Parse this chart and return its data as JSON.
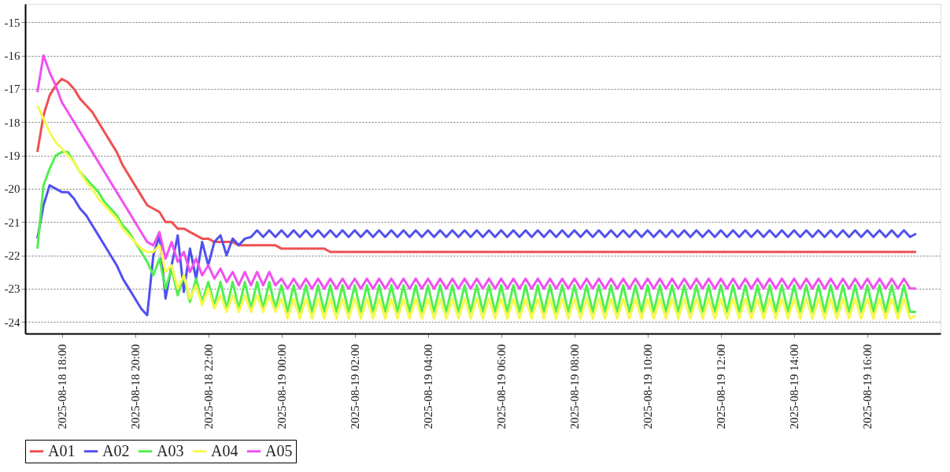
{
  "chart_data": {
    "type": "line",
    "legend": "bottom",
    "grid": "y",
    "marker": "none",
    "line_style": "solid",
    "xlim": [
      "2025-08-18T17:00",
      "2025-08-19T18:00"
    ],
    "ylim": [
      -24.35,
      -14.45
    ],
    "yticks": [
      -24,
      -23,
      -22,
      -21,
      -20,
      -19,
      -18,
      -17,
      -16,
      -15
    ],
    "xticks": [
      {
        "value": "2025-08-18T18:00",
        "label": "2025-08-18 18:00"
      },
      {
        "value": "2025-08-18T20:00",
        "label": "2025-08-18 20:00"
      },
      {
        "value": "2025-08-18T22:00",
        "label": "2025-08-18 22:00"
      },
      {
        "value": "2025-08-19T00:00",
        "label": "2025-08-19 00:00"
      },
      {
        "value": "2025-08-19T02:00",
        "label": "2025-08-19 02:00"
      },
      {
        "value": "2025-08-19T04:00",
        "label": "2025-08-19 04:00"
      },
      {
        "value": "2025-08-19T06:00",
        "label": "2025-08-19 06:00"
      },
      {
        "value": "2025-08-19T08:00",
        "label": "2025-08-19 08:00"
      },
      {
        "value": "2025-08-19T10:00",
        "label": "2025-08-19 10:00"
      },
      {
        "value": "2025-08-19T12:00",
        "label": "2025-08-19 12:00"
      },
      {
        "value": "2025-08-19T14:00",
        "label": "2025-08-19 14:00"
      },
      {
        "value": "2025-08-19T16:00",
        "label": "2025-08-19 16:00"
      }
    ],
    "x": [
      "2025-08-18T17:20",
      "2025-08-18T17:30",
      "2025-08-18T17:40",
      "2025-08-18T17:50",
      "2025-08-18T18:00",
      "2025-08-18T18:10",
      "2025-08-18T18:20",
      "2025-08-18T18:30",
      "2025-08-18T18:40",
      "2025-08-18T18:50",
      "2025-08-18T19:00",
      "2025-08-18T19:10",
      "2025-08-18T19:20",
      "2025-08-18T19:30",
      "2025-08-18T19:40",
      "2025-08-18T19:50",
      "2025-08-18T20:00",
      "2025-08-18T20:10",
      "2025-08-18T20:20",
      "2025-08-18T20:30",
      "2025-08-18T20:40",
      "2025-08-18T20:50",
      "2025-08-18T21:00",
      "2025-08-18T21:10",
      "2025-08-18T21:20",
      "2025-08-18T21:30",
      "2025-08-18T21:40",
      "2025-08-18T21:50",
      "2025-08-18T22:00",
      "2025-08-18T22:10",
      "2025-08-18T22:20",
      "2025-08-18T22:30",
      "2025-08-18T22:40",
      "2025-08-18T22:50",
      "2025-08-18T23:00",
      "2025-08-18T23:10",
      "2025-08-18T23:20",
      "2025-08-18T23:30",
      "2025-08-18T23:40",
      "2025-08-18T23:50",
      "2025-08-19T00:00",
      "2025-08-19T00:10",
      "2025-08-19T00:20",
      "2025-08-19T00:30",
      "2025-08-19T00:40",
      "2025-08-19T00:50",
      "2025-08-19T01:00",
      "2025-08-19T01:10",
      "2025-08-19T01:20",
      "2025-08-19T01:30",
      "2025-08-19T01:40",
      "2025-08-19T01:50",
      "2025-08-19T02:00",
      "2025-08-19T02:10",
      "2025-08-19T02:20",
      "2025-08-19T02:30",
      "2025-08-19T02:40",
      "2025-08-19T02:50",
      "2025-08-19T03:00",
      "2025-08-19T03:10",
      "2025-08-19T03:20",
      "2025-08-19T03:30",
      "2025-08-19T03:40",
      "2025-08-19T03:50",
      "2025-08-19T04:00",
      "2025-08-19T04:10",
      "2025-08-19T04:20",
      "2025-08-19T04:30",
      "2025-08-19T04:40",
      "2025-08-19T04:50",
      "2025-08-19T05:00",
      "2025-08-19T05:10",
      "2025-08-19T05:20",
      "2025-08-19T05:30",
      "2025-08-19T05:40",
      "2025-08-19T05:50",
      "2025-08-19T06:00",
      "2025-08-19T06:10",
      "2025-08-19T06:20",
      "2025-08-19T06:30",
      "2025-08-19T06:40",
      "2025-08-19T06:50",
      "2025-08-19T07:00",
      "2025-08-19T07:10",
      "2025-08-19T07:20",
      "2025-08-19T07:30",
      "2025-08-19T07:40",
      "2025-08-19T07:50",
      "2025-08-19T08:00",
      "2025-08-19T08:10",
      "2025-08-19T08:20",
      "2025-08-19T08:30",
      "2025-08-19T08:40",
      "2025-08-19T08:50",
      "2025-08-19T09:00",
      "2025-08-19T09:10",
      "2025-08-19T09:20",
      "2025-08-19T09:30",
      "2025-08-19T09:40",
      "2025-08-19T09:50",
      "2025-08-19T10:00",
      "2025-08-19T10:10",
      "2025-08-19T10:20",
      "2025-08-19T10:30",
      "2025-08-19T10:40",
      "2025-08-19T10:50",
      "2025-08-19T11:00",
      "2025-08-19T11:10",
      "2025-08-19T11:20",
      "2025-08-19T11:30",
      "2025-08-19T11:40",
      "2025-08-19T11:50",
      "2025-08-19T12:00",
      "2025-08-19T12:10",
      "2025-08-19T12:20",
      "2025-08-19T12:30",
      "2025-08-19T12:40",
      "2025-08-19T12:50",
      "2025-08-19T13:00",
      "2025-08-19T13:10",
      "2025-08-19T13:20",
      "2025-08-19T13:30",
      "2025-08-19T13:40",
      "2025-08-19T13:50",
      "2025-08-19T14:00",
      "2025-08-19T14:10",
      "2025-08-19T14:20",
      "2025-08-19T14:30",
      "2025-08-19T14:40",
      "2025-08-19T14:50",
      "2025-08-19T15:00",
      "2025-08-19T15:10",
      "2025-08-19T15:20",
      "2025-08-19T15:30",
      "2025-08-19T15:40",
      "2025-08-19T15:50",
      "2025-08-19T16:00",
      "2025-08-19T16:10",
      "2025-08-19T16:20",
      "2025-08-19T16:30",
      "2025-08-19T16:40",
      "2025-08-19T16:50",
      "2025-08-19T17:00",
      "2025-08-19T17:10",
      "2025-08-19T17:20"
    ],
    "series": [
      {
        "name": "A01",
        "color": "#f05050",
        "values": [
          -18.9,
          -17.8,
          -17.2,
          -16.9,
          -16.7,
          -16.8,
          -17.0,
          -17.3,
          -17.5,
          -17.7,
          -18.0,
          -18.3,
          -18.6,
          -18.9,
          -19.3,
          -19.6,
          -19.9,
          -20.2,
          -20.5,
          -20.6,
          -20.7,
          -21.0,
          -21.0,
          -21.2,
          -21.2,
          -21.3,
          -21.4,
          -21.5,
          -21.5,
          -21.6,
          -21.6,
          -21.6,
          -21.6,
          -21.7,
          -21.7,
          -21.7,
          -21.7,
          -21.7,
          -21.7,
          -21.7,
          -21.8,
          -21.8,
          -21.8,
          -21.8,
          -21.8,
          -21.8,
          -21.8,
          -21.8,
          -21.9,
          -21.9,
          -21.9,
          -21.9,
          -21.9,
          -21.9,
          -21.9,
          -21.9,
          -21.9,
          -21.9,
          -21.9,
          -21.9,
          -21.9,
          -21.9,
          -21.9,
          -21.9,
          -21.9,
          -21.9,
          -21.9,
          -21.9,
          -21.9,
          -21.9,
          -21.9,
          -21.9,
          -21.9,
          -21.9,
          -21.9,
          -21.9,
          -21.9,
          -21.9,
          -21.9,
          -21.9,
          -21.9,
          -21.9,
          -21.9,
          -21.9,
          -21.9,
          -21.9,
          -21.9,
          -21.9,
          -21.9,
          -21.9,
          -21.9,
          -21.9,
          -21.9,
          -21.9,
          -21.9,
          -21.9,
          -21.9,
          -21.9,
          -21.9,
          -21.9,
          -21.9,
          -21.9,
          -21.9,
          -21.9,
          -21.9,
          -21.9,
          -21.9,
          -21.9,
          -21.9,
          -21.9,
          -21.9,
          -21.9,
          -21.9,
          -21.9,
          -21.9,
          -21.9,
          -21.9,
          -21.9,
          -21.9,
          -21.9,
          -21.9,
          -21.9,
          -21.9,
          -21.9,
          -21.9,
          -21.9,
          -21.9,
          -21.9,
          -21.9,
          -21.9,
          -21.9,
          -21.9,
          -21.9,
          -21.9,
          -21.9,
          -21.9,
          -21.9,
          -21.9,
          -21.9,
          -21.9,
          -21.9,
          -21.9,
          -21.9,
          -21.9,
          -21.9
        ]
      },
      {
        "name": "A02",
        "color": "#5050f0",
        "values": [
          -21.5,
          -20.5,
          -19.9,
          -20.0,
          -20.1,
          -20.1,
          -20.3,
          -20.6,
          -20.8,
          -21.1,
          -21.4,
          -21.7,
          -22.0,
          -22.3,
          -22.7,
          -23.0,
          -23.3,
          -23.6,
          -23.8,
          -22.0,
          -21.4,
          -23.3,
          -22.3,
          -21.4,
          -23.1,
          -21.8,
          -22.7,
          -21.6,
          -22.3,
          -21.6,
          -21.4,
          -22.0,
          -21.5,
          -21.7,
          -21.5,
          -21.45,
          -21.25,
          -21.45,
          -21.25,
          -21.45,
          -21.25,
          -21.45,
          -21.25,
          -21.45,
          -21.25,
          -21.45,
          -21.25,
          -21.45,
          -21.25,
          -21.45,
          -21.25,
          -21.45,
          -21.25,
          -21.45,
          -21.25,
          -21.45,
          -21.25,
          -21.45,
          -21.25,
          -21.45,
          -21.25,
          -21.45,
          -21.25,
          -21.45,
          -21.25,
          -21.45,
          -21.25,
          -21.45,
          -21.25,
          -21.45,
          -21.25,
          -21.45,
          -21.25,
          -21.45,
          -21.25,
          -21.45,
          -21.25,
          -21.45,
          -21.25,
          -21.45,
          -21.25,
          -21.45,
          -21.25,
          -21.45,
          -21.25,
          -21.45,
          -21.25,
          -21.45,
          -21.25,
          -21.45,
          -21.25,
          -21.45,
          -21.25,
          -21.45,
          -21.25,
          -21.45,
          -21.25,
          -21.45,
          -21.25,
          -21.45,
          -21.25,
          -21.45,
          -21.25,
          -21.45,
          -21.25,
          -21.45,
          -21.25,
          -21.45,
          -21.25,
          -21.45,
          -21.25,
          -21.45,
          -21.25,
          -21.45,
          -21.25,
          -21.45,
          -21.25,
          -21.45,
          -21.25,
          -21.45,
          -21.25,
          -21.45,
          -21.25,
          -21.45,
          -21.25,
          -21.45,
          -21.25,
          -21.45,
          -21.25,
          -21.45,
          -21.25,
          -21.45,
          -21.25,
          -21.45,
          -21.25,
          -21.45,
          -21.25,
          -21.45,
          -21.25,
          -21.45,
          -21.25,
          -21.45,
          -21.25,
          -21.45,
          -21.35
        ]
      },
      {
        "name": "A03",
        "color": "#50f050",
        "values": [
          -21.8,
          -19.9,
          -19.4,
          -19.0,
          -18.9,
          -18.9,
          -19.2,
          -19.5,
          -19.7,
          -19.9,
          -20.1,
          -20.4,
          -20.6,
          -20.8,
          -21.1,
          -21.3,
          -21.6,
          -21.9,
          -22.2,
          -22.6,
          -22.1,
          -23.0,
          -22.4,
          -23.2,
          -22.6,
          -23.4,
          -22.7,
          -23.4,
          -22.8,
          -23.5,
          -22.8,
          -23.6,
          -22.8,
          -23.6,
          -22.8,
          -23.6,
          -22.8,
          -23.6,
          -22.8,
          -23.6,
          -22.9,
          -23.7,
          -22.9,
          -23.7,
          -22.9,
          -23.7,
          -22.9,
          -23.7,
          -22.9,
          -23.7,
          -22.9,
          -23.7,
          -22.9,
          -23.7,
          -22.9,
          -23.7,
          -22.9,
          -23.7,
          -22.9,
          -23.7,
          -22.9,
          -23.7,
          -22.9,
          -23.7,
          -22.9,
          -23.7,
          -22.9,
          -23.7,
          -22.9,
          -23.7,
          -22.9,
          -23.7,
          -22.9,
          -23.7,
          -22.9,
          -23.7,
          -22.9,
          -23.7,
          -22.9,
          -23.7,
          -22.9,
          -23.7,
          -22.9,
          -23.7,
          -22.9,
          -23.7,
          -22.9,
          -23.7,
          -22.9,
          -23.7,
          -22.9,
          -23.7,
          -22.9,
          -23.7,
          -22.9,
          -23.7,
          -22.9,
          -23.7,
          -22.9,
          -23.7,
          -22.9,
          -23.7,
          -22.9,
          -23.7,
          -22.9,
          -23.7,
          -22.9,
          -23.7,
          -22.9,
          -23.7,
          -22.9,
          -23.7,
          -22.9,
          -23.7,
          -22.9,
          -23.7,
          -22.9,
          -23.7,
          -22.9,
          -23.7,
          -22.9,
          -23.7,
          -22.9,
          -23.7,
          -22.9,
          -23.7,
          -22.9,
          -23.7,
          -22.9,
          -23.7,
          -22.9,
          -23.7,
          -22.9,
          -23.7,
          -22.9,
          -23.7,
          -22.9,
          -23.7,
          -22.9,
          -23.7,
          -22.9,
          -23.7,
          -22.9,
          -23.7,
          -23.7
        ]
      },
      {
        "name": "A04",
        "color": "#f8f850",
        "values": [
          -17.5,
          -17.9,
          -18.3,
          -18.6,
          -18.8,
          -19.0,
          -19.2,
          -19.5,
          -19.8,
          -20.0,
          -20.3,
          -20.5,
          -20.7,
          -20.9,
          -21.2,
          -21.4,
          -21.6,
          -21.8,
          -21.9,
          -21.9,
          -21.7,
          -22.5,
          -22.3,
          -23.0,
          -22.6,
          -23.3,
          -22.9,
          -23.5,
          -23.0,
          -23.6,
          -23.2,
          -23.7,
          -23.2,
          -23.7,
          -23.2,
          -23.7,
          -23.2,
          -23.7,
          -23.2,
          -23.7,
          -23.3,
          -23.9,
          -23.3,
          -23.9,
          -23.3,
          -23.9,
          -23.3,
          -23.9,
          -23.3,
          -23.9,
          -23.3,
          -23.9,
          -23.3,
          -23.9,
          -23.3,
          -23.9,
          -23.3,
          -23.9,
          -23.3,
          -23.9,
          -23.3,
          -23.9,
          -23.3,
          -23.9,
          -23.3,
          -23.9,
          -23.3,
          -23.9,
          -23.3,
          -23.9,
          -23.3,
          -23.9,
          -23.3,
          -23.9,
          -23.3,
          -23.9,
          -23.3,
          -23.9,
          -23.3,
          -23.9,
          -23.3,
          -23.9,
          -23.3,
          -23.9,
          -23.3,
          -23.9,
          -23.3,
          -23.9,
          -23.3,
          -23.9,
          -23.3,
          -23.9,
          -23.3,
          -23.9,
          -23.3,
          -23.9,
          -23.3,
          -23.9,
          -23.3,
          -23.9,
          -23.3,
          -23.9,
          -23.3,
          -23.9,
          -23.3,
          -23.9,
          -23.3,
          -23.9,
          -23.3,
          -23.9,
          -23.3,
          -23.9,
          -23.3,
          -23.9,
          -23.3,
          -23.9,
          -23.3,
          -23.9,
          -23.3,
          -23.9,
          -23.3,
          -23.9,
          -23.3,
          -23.9,
          -23.3,
          -23.9,
          -23.3,
          -23.9,
          -23.3,
          -23.9,
          -23.3,
          -23.9,
          -23.3,
          -23.9,
          -23.3,
          -23.9,
          -23.3,
          -23.9,
          -23.3,
          -23.9,
          -23.3,
          -23.9,
          -23.3,
          -23.9,
          -23.8
        ]
      },
      {
        "name": "A05",
        "color": "#f050f0",
        "values": [
          -17.1,
          -16.0,
          -16.5,
          -16.9,
          -17.4,
          -17.7,
          -18.0,
          -18.3,
          -18.6,
          -18.9,
          -19.2,
          -19.5,
          -19.8,
          -20.1,
          -20.4,
          -20.7,
          -21.0,
          -21.3,
          -21.6,
          -21.7,
          -21.3,
          -22.1,
          -21.6,
          -22.2,
          -21.9,
          -22.5,
          -22.1,
          -22.6,
          -22.3,
          -22.7,
          -22.4,
          -22.8,
          -22.5,
          -22.9,
          -22.5,
          -22.9,
          -22.5,
          -22.9,
          -22.5,
          -22.9,
          -22.7,
          -23.0,
          -22.7,
          -23.0,
          -22.7,
          -23.0,
          -22.7,
          -23.0,
          -22.7,
          -23.0,
          -22.7,
          -23.0,
          -22.7,
          -23.0,
          -22.7,
          -23.0,
          -22.7,
          -23.0,
          -22.7,
          -23.0,
          -22.7,
          -23.0,
          -22.7,
          -23.0,
          -22.7,
          -23.0,
          -22.7,
          -23.0,
          -22.7,
          -23.0,
          -22.7,
          -23.0,
          -22.7,
          -23.0,
          -22.7,
          -23.0,
          -22.7,
          -23.0,
          -22.7,
          -23.0,
          -22.7,
          -23.0,
          -22.7,
          -23.0,
          -22.7,
          -23.0,
          -22.7,
          -23.0,
          -22.7,
          -23.0,
          -22.7,
          -23.0,
          -22.7,
          -23.0,
          -22.7,
          -23.0,
          -22.7,
          -23.0,
          -22.7,
          -23.0,
          -22.7,
          -23.0,
          -22.7,
          -23.0,
          -22.7,
          -23.0,
          -22.7,
          -23.0,
          -22.7,
          -23.0,
          -22.7,
          -23.0,
          -22.7,
          -23.0,
          -22.7,
          -23.0,
          -22.7,
          -23.0,
          -22.7,
          -23.0,
          -22.7,
          -23.0,
          -22.7,
          -23.0,
          -22.7,
          -23.0,
          -22.7,
          -23.0,
          -22.7,
          -23.0,
          -22.7,
          -23.0,
          -22.7,
          -23.0,
          -22.7,
          -23.0,
          -22.7,
          -23.0,
          -22.7,
          -23.0,
          -22.7,
          -23.0,
          -22.7,
          -23.0,
          -23.0
        ]
      }
    ]
  }
}
